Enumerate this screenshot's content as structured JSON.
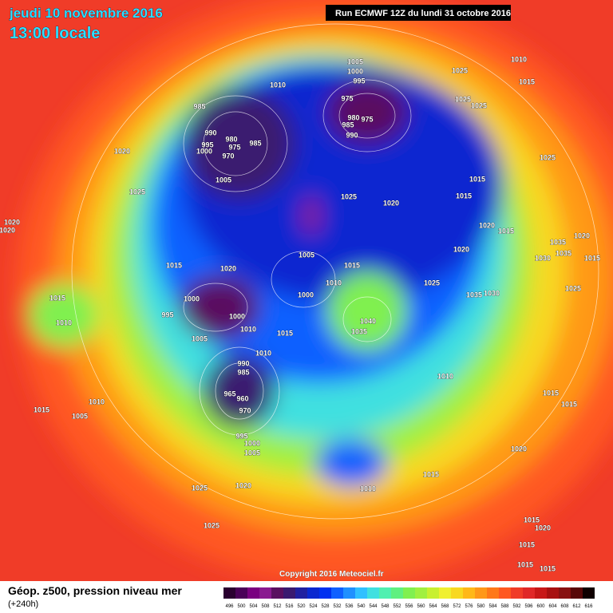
{
  "header": {
    "date": "jeudi 10 novembre 2016",
    "time": "13:00 locale",
    "run": "Run ECMWF 12Z du lundi 31 octobre 2016"
  },
  "footer": {
    "title": "Géop. z500, pression niveau mer",
    "lead": "(+240h)",
    "copyright": "Copyright 2016 Meteociel.fr"
  },
  "scale": {
    "values": [
      496,
      500,
      504,
      508,
      512,
      516,
      520,
      524,
      528,
      532,
      536,
      540,
      544,
      548,
      552,
      556,
      560,
      564,
      568,
      572,
      576,
      580,
      584,
      588,
      592,
      596,
      600,
      604,
      608,
      612,
      616
    ],
    "colors": [
      "#2a0030",
      "#4a0058",
      "#7a0080",
      "#8a1a90",
      "#5a1060",
      "#3a1a70",
      "#2020a0",
      "#0a28d0",
      "#0030f0",
      "#1060ff",
      "#2090ff",
      "#30c0ff",
      "#40e0e0",
      "#50f0b0",
      "#60f080",
      "#80f050",
      "#a0f040",
      "#c8f030",
      "#f0f030",
      "#f8d820",
      "#ffb818",
      "#ff9818",
      "#ff7818",
      "#ff5820",
      "#f03c28",
      "#e02828",
      "#c81818",
      "#a81010",
      "#881010",
      "#580808",
      "#100000"
    ]
  },
  "pressure_labels": [
    1005,
    1000,
    995,
    1010,
    985,
    975,
    975,
    980,
    985,
    990,
    990,
    980,
    975,
    985,
    995,
    1000,
    970,
    1005,
    1020,
    1025,
    1025,
    1020,
    1015,
    1020,
    1015,
    1020,
    1025,
    1035,
    1030,
    1015,
    1020,
    1005,
    1015,
    1010,
    1000,
    1000,
    995,
    1000,
    1010,
    1005,
    1015,
    1040,
    1035,
    1010,
    990,
    985,
    965,
    960,
    970,
    995,
    1000,
    1005,
    1025,
    1020,
    1010,
    1015,
    1010,
    1020,
    1015,
    1015,
    1015,
    1020,
    1025,
    1035,
    1030,
    1035,
    1020,
    1015,
    1020,
    1020,
    1015,
    1010,
    1010,
    1005,
    1015,
    1025,
    1010,
    1015,
    1025,
    1025,
    1025,
    1025,
    1015,
    1015,
    1015,
    1015
  ]
}
